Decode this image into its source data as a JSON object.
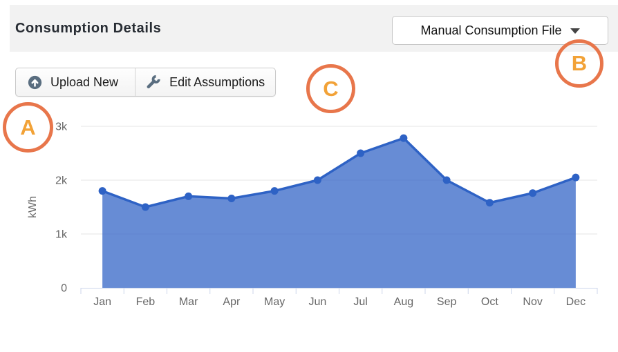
{
  "header": {
    "title": "Consumption Details",
    "dropdown": {
      "value": "Manual Consumption File",
      "caret_icon": "caret-down"
    }
  },
  "toolbar": {
    "upload_label": "Upload New",
    "upload_icon": "circle-up-arrow",
    "edit_label": "Edit Assumptions",
    "edit_icon": "wrench"
  },
  "annotations": [
    {
      "label": "A"
    },
    {
      "label": "B"
    },
    {
      "label": "C"
    }
  ],
  "colors": {
    "header_bg": "#F2F2F2",
    "title_text": "#272C33",
    "dropdown_border": "#C7C7C7",
    "caret": "#444444",
    "button_border": "#C9C9C9",
    "button_text": "#1B1B1B",
    "icon_slate": "#5A6E80",
    "annotation_ring": "#E8764B",
    "annotation_letter": "#F2A237",
    "series_line": "#2E62C5",
    "series_fill_opacity": "0.73",
    "grid": "#E6E6E6",
    "axis": "#CCD6EB",
    "axis_label": "#666666"
  },
  "chart_data": {
    "type": "area",
    "categories": [
      "Jan",
      "Feb",
      "Mar",
      "Apr",
      "May",
      "Jun",
      "Jul",
      "Aug",
      "Sep",
      "Oct",
      "Nov",
      "Dec"
    ],
    "values": [
      1800,
      1500,
      1700,
      1660,
      1800,
      2000,
      2500,
      2780,
      2000,
      1580,
      1760,
      2050
    ],
    "title": "",
    "xlabel": "",
    "ylabel": "kWh",
    "ylim": [
      0,
      3000
    ],
    "yticks": [
      0,
      1000,
      2000,
      3000
    ],
    "ytick_labels": [
      "0",
      "1k",
      "2k",
      "3k"
    ],
    "grid": true,
    "legend": false
  }
}
